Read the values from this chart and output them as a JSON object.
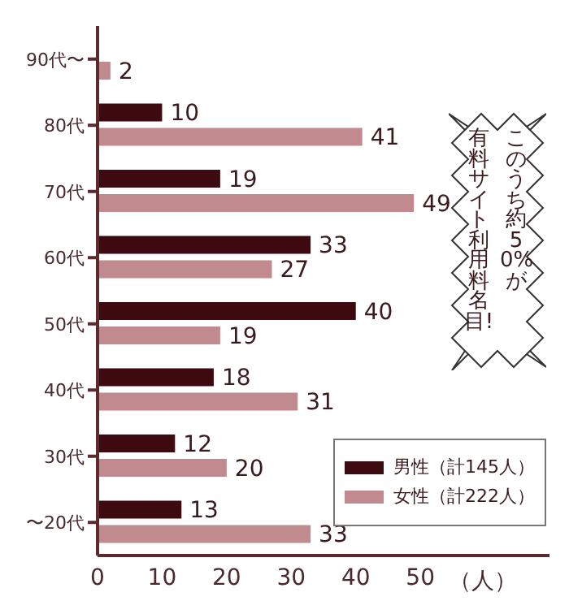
{
  "chart_data": {
    "type": "bar",
    "orientation": "horizontal",
    "categories": [
      "90代〜",
      "80代",
      "70代",
      "60代",
      "50代",
      "40代",
      "30代",
      "〜20代"
    ],
    "series": [
      {
        "name": "男性（計145人）",
        "color": "#3d0a10",
        "values": [
          null,
          10,
          19,
          33,
          40,
          18,
          12,
          13
        ]
      },
      {
        "name": "女性（計222人）",
        "color": "#c08a8e",
        "values": [
          2,
          41,
          49,
          27,
          19,
          31,
          20,
          33
        ]
      }
    ],
    "xlabel": "（人）",
    "xlim": [
      0,
      70
    ],
    "xticks": [
      0,
      10,
      20,
      30,
      40,
      50
    ],
    "data_labels": true,
    "grid": false,
    "legend": "bottom right",
    "annotations": [
      "このうち約50%が",
      "有料サイト利用料名目!"
    ]
  }
}
